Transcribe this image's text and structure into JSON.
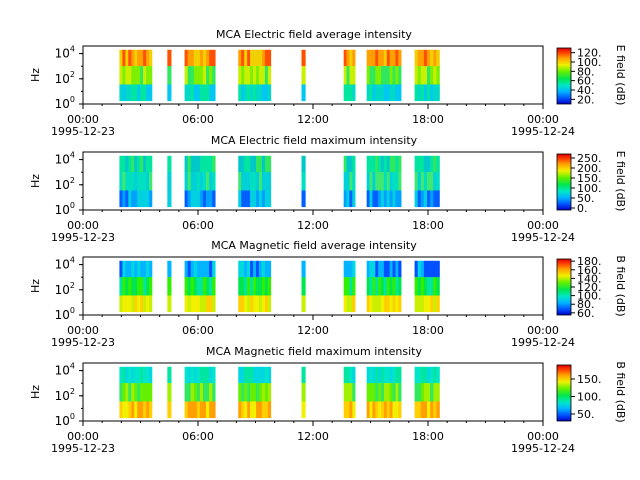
{
  "chart_data": [
    {
      "type": "heatmap",
      "title": "MCA  Electric field average intensity",
      "ylabel": "Hz",
      "y_scale": "log",
      "ylim": [
        1,
        40000
      ],
      "y_ticks": [
        {
          "value": 1,
          "base": "10",
          "exp": "0"
        },
        {
          "value": 100,
          "base": "10",
          "exp": "2"
        },
        {
          "value": 10000,
          "base": "10",
          "exp": "4"
        }
      ],
      "x_range": [
        "1995-12-23T00:00",
        "1995-12-24T00:00"
      ],
      "x_ticks": [
        "00:00",
        "06:00",
        "12:00",
        "18:00",
        "00:00"
      ],
      "x_dates": [
        "1995-12-23",
        "1995-12-24"
      ],
      "colorbar": {
        "label": "E field (dB)",
        "range": [
          10,
          130
        ],
        "ticks": [
          "20.",
          "40.",
          "60.",
          "80.",
          "100.",
          "120."
        ]
      },
      "data_intervals_hours": [
        [
          1.9,
          3.6
        ],
        [
          4.4,
          4.6
        ],
        [
          5.3,
          6.9
        ],
        [
          8.1,
          9.8
        ],
        [
          11.4,
          11.6
        ],
        [
          13.6,
          14.2
        ],
        [
          14.8,
          16.6
        ],
        [
          17.3,
          18.6
        ]
      ],
      "freq_range_hz": [
        1.8,
        20000
      ],
      "palette": "avgE"
    },
    {
      "type": "heatmap",
      "title": "MCA  Electric field maximum intensity",
      "ylabel": "Hz",
      "y_scale": "log",
      "ylim": [
        1,
        40000
      ],
      "y_ticks": [
        {
          "value": 1,
          "base": "10",
          "exp": "0"
        },
        {
          "value": 100,
          "base": "10",
          "exp": "2"
        },
        {
          "value": 10000,
          "base": "10",
          "exp": "4"
        }
      ],
      "x_range": [
        "1995-12-23T00:00",
        "1995-12-24T00:00"
      ],
      "x_ticks": [
        "00:00",
        "06:00",
        "12:00",
        "18:00",
        "00:00"
      ],
      "x_dates": [
        "1995-12-23",
        "1995-12-24"
      ],
      "colorbar": {
        "label": "E field (dB)",
        "range": [
          -10,
          270
        ],
        "ticks": [
          "0.",
          "50.",
          "100.",
          "150.",
          "200.",
          "250."
        ]
      },
      "data_intervals_hours": [
        [
          1.9,
          3.6
        ],
        [
          4.4,
          4.6
        ],
        [
          5.3,
          6.9
        ],
        [
          8.1,
          9.8
        ],
        [
          11.4,
          11.6
        ],
        [
          13.6,
          14.2
        ],
        [
          14.8,
          16.6
        ],
        [
          17.3,
          18.6
        ]
      ],
      "freq_range_hz": [
        1.8,
        20000
      ],
      "palette": "maxE"
    },
    {
      "type": "heatmap",
      "title": "MCA  Magnetic field average intensity",
      "ylabel": "Hz",
      "y_scale": "log",
      "ylim": [
        1,
        40000
      ],
      "y_ticks": [
        {
          "value": 1,
          "base": "10",
          "exp": "0"
        },
        {
          "value": 100,
          "base": "10",
          "exp": "2"
        },
        {
          "value": 10000,
          "base": "10",
          "exp": "4"
        }
      ],
      "x_range": [
        "1995-12-23T00:00",
        "1995-12-24T00:00"
      ],
      "x_ticks": [
        "00:00",
        "06:00",
        "12:00",
        "18:00",
        "00:00"
      ],
      "x_dates": [
        "1995-12-23",
        "1995-12-24"
      ],
      "colorbar": {
        "label": "B field (dB)",
        "range": [
          55,
          185
        ],
        "ticks": [
          "60.",
          "80.",
          "100.",
          "120.",
          "140.",
          "160.",
          "180."
        ]
      },
      "data_intervals_hours": [
        [
          1.9,
          3.6
        ],
        [
          4.4,
          4.6
        ],
        [
          5.3,
          6.9
        ],
        [
          8.1,
          9.8
        ],
        [
          11.4,
          11.6
        ],
        [
          13.6,
          14.2
        ],
        [
          14.8,
          16.6
        ],
        [
          17.3,
          18.6
        ]
      ],
      "freq_range_hz": [
        1.8,
        20000
      ],
      "palette": "avgB"
    },
    {
      "type": "heatmap",
      "title": "MCA  Magnetic field maximum intensity",
      "ylabel": "Hz",
      "y_scale": "log",
      "ylim": [
        1,
        40000
      ],
      "y_ticks": [
        {
          "value": 1,
          "base": "10",
          "exp": "0"
        },
        {
          "value": 100,
          "base": "10",
          "exp": "2"
        },
        {
          "value": 10000,
          "base": "10",
          "exp": "4"
        }
      ],
      "x_range": [
        "1995-12-23T00:00",
        "1995-12-24T00:00"
      ],
      "x_ticks": [
        "00:00",
        "06:00",
        "12:00",
        "18:00",
        "00:00"
      ],
      "x_dates": [
        "1995-12-23",
        "1995-12-24"
      ],
      "colorbar": {
        "label": "B field (dB)",
        "range": [
          30,
          190
        ],
        "ticks": [
          "50.",
          "100.",
          "150."
        ]
      },
      "data_intervals_hours": [
        [
          1.9,
          3.6
        ],
        [
          4.4,
          4.6
        ],
        [
          5.3,
          6.9
        ],
        [
          8.1,
          9.8
        ],
        [
          11.4,
          11.6
        ],
        [
          13.6,
          14.2
        ],
        [
          14.8,
          16.6
        ],
        [
          17.3,
          18.6
        ]
      ],
      "freq_range_hz": [
        1.8,
        20000
      ],
      "palette": "maxB"
    }
  ]
}
